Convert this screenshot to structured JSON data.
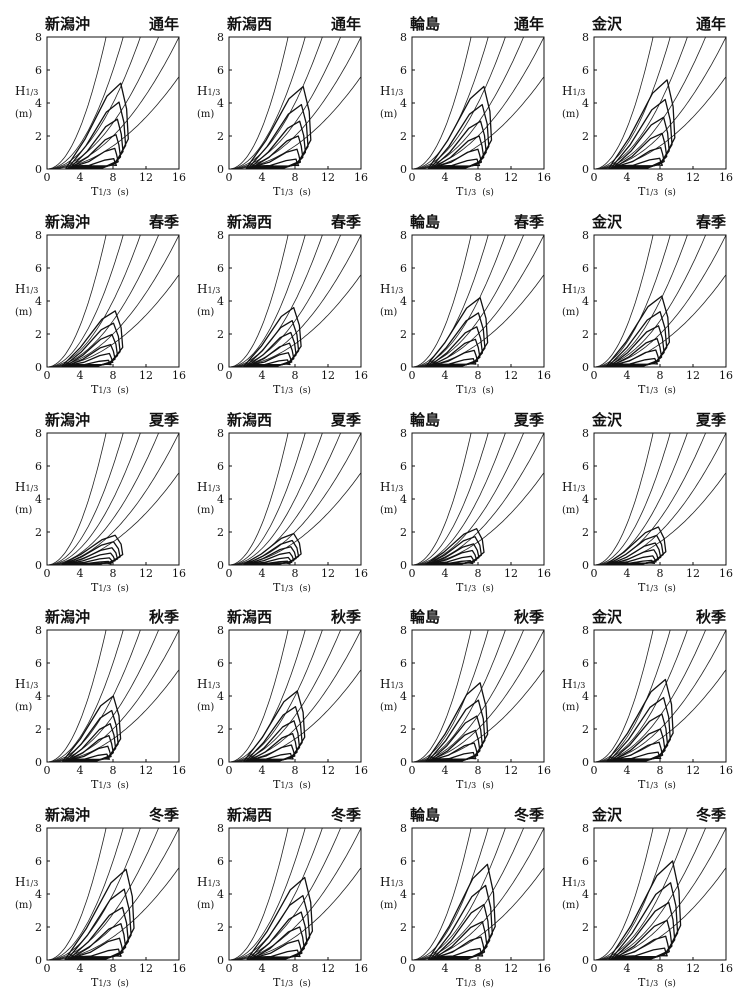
{
  "chart_data": {
    "type": "contour-grid",
    "axis": {
      "x_label_main": "T",
      "x_label_sub": "1/3",
      "x_unit": "(s)",
      "y_label_main": "H",
      "y_label_sub": "1/3",
      "y_unit": "(m)",
      "xlim": [
        0,
        16
      ],
      "ylim": [
        0,
        8
      ],
      "x_ticks": [
        0,
        4,
        8,
        12,
        16
      ],
      "y_ticks": [
        0,
        2,
        4,
        6,
        8
      ]
    },
    "steepness_curves": [
      0.1,
      0.06,
      0.04,
      0.028,
      0.02,
      0.014
    ],
    "rows": [
      {
        "season": "通年",
        "panels": [
          {
            "station": "新潟沖",
            "hmax": 5.2,
            "tmax": 10.2,
            "tmin": 2.3,
            "lean": 0.5
          },
          {
            "station": "新潟西",
            "hmax": 5.0,
            "tmax": 10.3,
            "tmin": 2.1,
            "lean": 0.5
          },
          {
            "station": "輪島",
            "hmax": 5.0,
            "tmax": 10.0,
            "tmin": 2.0,
            "lean": 0.5
          },
          {
            "station": "金沢",
            "hmax": 5.4,
            "tmax": 10.2,
            "tmin": 1.8,
            "lean": 0.5
          }
        ]
      },
      {
        "season": "春季",
        "panels": [
          {
            "station": "新潟沖",
            "hmax": 3.4,
            "tmax": 9.5,
            "tmin": 1.8,
            "lean": 0.45
          },
          {
            "station": "新潟西",
            "hmax": 3.6,
            "tmax": 9.0,
            "tmin": 1.8,
            "lean": 0.45
          },
          {
            "station": "輪島",
            "hmax": 4.2,
            "tmax": 9.5,
            "tmin": 1.7,
            "lean": 0.5
          },
          {
            "station": "金沢",
            "hmax": 4.3,
            "tmax": 9.5,
            "tmin": 1.5,
            "lean": 0.5
          }
        ]
      },
      {
        "season": "夏季",
        "panels": [
          {
            "station": "新潟沖",
            "hmax": 1.8,
            "tmax": 9.5,
            "tmin": 1.8,
            "lean": 0.4
          },
          {
            "station": "新潟西",
            "hmax": 1.9,
            "tmax": 9.0,
            "tmin": 1.8,
            "lean": 0.4
          },
          {
            "station": "輪島",
            "hmax": 2.2,
            "tmax": 9.0,
            "tmin": 1.7,
            "lean": 0.45
          },
          {
            "station": "金沢",
            "hmax": 2.3,
            "tmax": 9.0,
            "tmin": 1.5,
            "lean": 0.45
          }
        ]
      },
      {
        "season": "秋季",
        "panels": [
          {
            "station": "新潟沖",
            "hmax": 4.0,
            "tmax": 9.2,
            "tmin": 1.9,
            "lean": 0.45
          },
          {
            "station": "新潟西",
            "hmax": 4.3,
            "tmax": 9.5,
            "tmin": 1.8,
            "lean": 0.45
          },
          {
            "station": "輪島",
            "hmax": 4.8,
            "tmax": 9.5,
            "tmin": 1.7,
            "lean": 0.5
          },
          {
            "station": "金沢",
            "hmax": 5.0,
            "tmax": 10.0,
            "tmin": 1.6,
            "lean": 0.5
          }
        ]
      },
      {
        "season": "冬季",
        "panels": [
          {
            "station": "新潟沖",
            "hmax": 5.5,
            "tmax": 11.0,
            "tmin": 2.2,
            "lean": 0.55
          },
          {
            "station": "新潟西",
            "hmax": 5.0,
            "tmax": 10.5,
            "tmin": 2.2,
            "lean": 0.55
          },
          {
            "station": "輪島",
            "hmax": 5.8,
            "tmax": 10.5,
            "tmin": 2.0,
            "lean": 0.55
          },
          {
            "station": "金沢",
            "hmax": 6.0,
            "tmax": 11.0,
            "tmin": 1.8,
            "lean": 0.55
          }
        ]
      }
    ]
  }
}
